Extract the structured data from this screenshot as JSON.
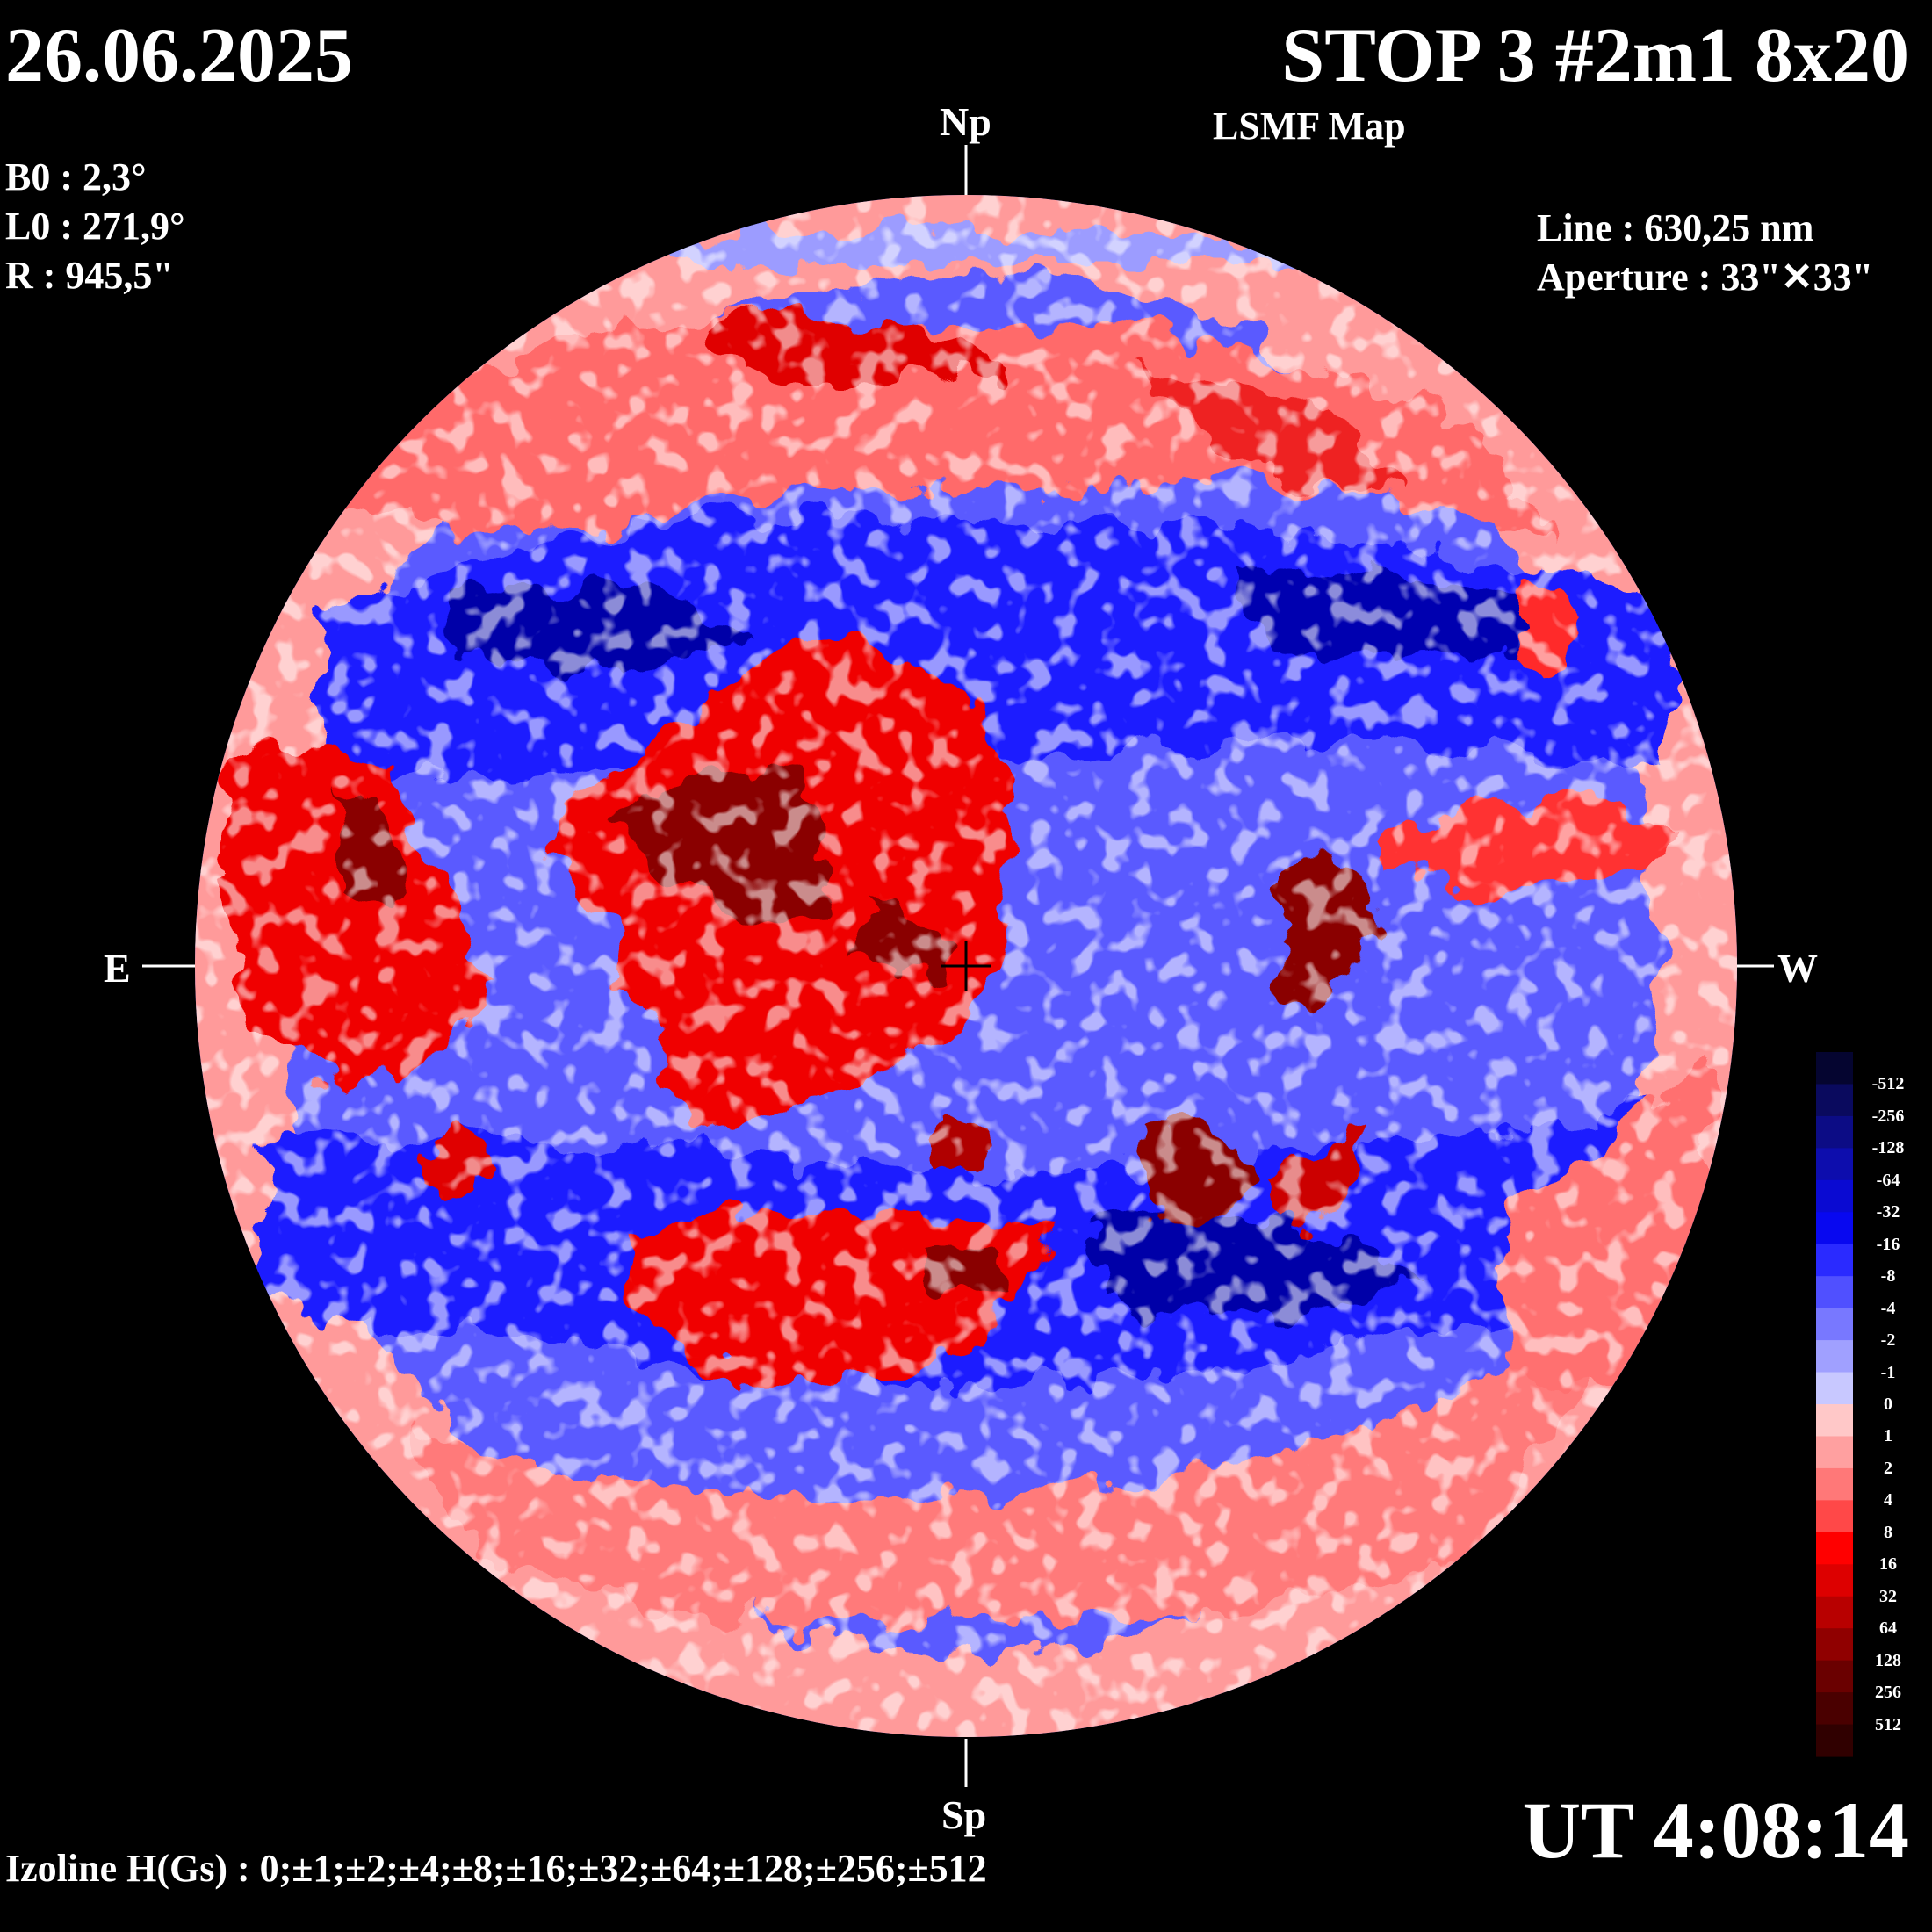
{
  "header": {
    "date": "26.06.2025",
    "title": "STOP 3 #2m1 8x20",
    "subtitle": "LSMF  Map"
  },
  "params": [
    "B0 : 2,3°",
    "L0 : 271,9°",
    "R  : 945,5\""
  ],
  "instrument": {
    "line": "Line :  630,25 nm",
    "aperture": "Aperture : 33\"✕33\""
  },
  "directions": {
    "north": "Np",
    "south": "Sp",
    "east": "E",
    "west": "W"
  },
  "footer": {
    "ut": "UT 4:08:14",
    "izoline": "Izoline H(Gs) : 0;±1;±2;±4;±8;±16;±32;±64;±128;±256;±512"
  },
  "colorbar": {
    "labels": [
      "-512",
      "-256",
      "-128",
      "-64",
      "-32",
      "-16",
      "-8",
      "-4",
      "-2",
      "-1",
      "0",
      "1",
      "2",
      "4",
      "8",
      "16",
      "32",
      "64",
      "128",
      "256",
      "512"
    ],
    "colors": [
      "#050530",
      "#0a0a5e",
      "#0c0c85",
      "#0d0dad",
      "#0a0ad2",
      "#0808f0",
      "#2a2aff",
      "#5050ff",
      "#7878ff",
      "#a0a0ff",
      "#c8c8ff",
      "#ffc8c8",
      "#ffa0a0",
      "#ff7878",
      "#ff4848",
      "#ff0000",
      "#dd0000",
      "#b80000",
      "#900000",
      "#6a0000",
      "#4a0000",
      "#300000"
    ]
  },
  "map": {
    "polarity_colors": {
      "negative_strong": "#0000a8",
      "negative_mid": "#1a1aff",
      "negative_weak": "#8c8cff",
      "neutral_negative": "#c8c8ff",
      "neutral_positive": "#ffc8c8",
      "positive_weak": "#ff8a8a",
      "positive_mid": "#f00000",
      "positive_strong": "#8a0000"
    }
  }
}
